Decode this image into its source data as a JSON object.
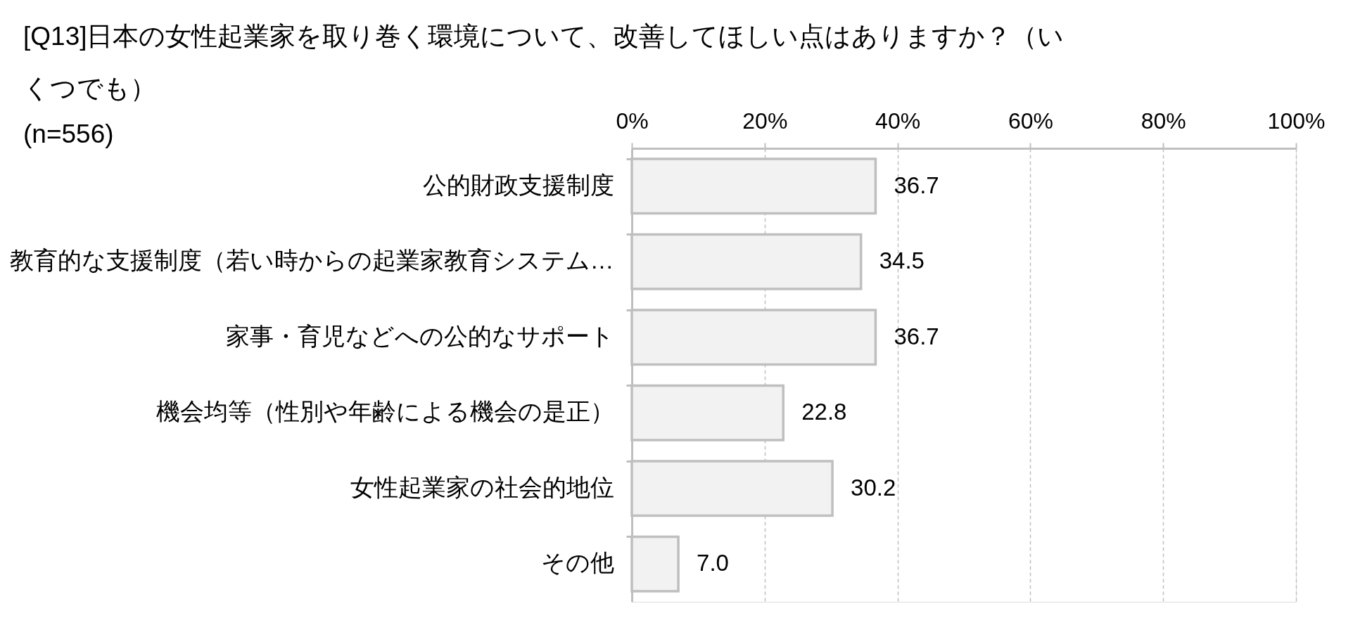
{
  "chart_data": {
    "type": "bar",
    "orientation": "horizontal",
    "title": "[Q13]日本の女性起業家を取り巻く環境について、改善してほしい点はありますか？（いくつでも）",
    "subtitle": "(n=556)",
    "categories": [
      "公的財政支援制度",
      "教育的な支援制度（若い時からの起業家教育システム…",
      "家事・育児などへの公的なサポート",
      "機会均等（性別や年齢による機会の是正）",
      "女性起業家の社会的地位",
      "その他"
    ],
    "values": [
      36.7,
      34.5,
      36.7,
      22.8,
      30.2,
      7.0
    ],
    "value_labels": [
      "36.7",
      "34.5",
      "36.7",
      "22.8",
      "30.2",
      "7.0"
    ],
    "color": "#f2f2f2",
    "xlim": [
      0,
      100
    ],
    "xticks": [
      {
        "value": 0,
        "label": "0%"
      },
      {
        "value": 20,
        "label": "20%"
      },
      {
        "value": 40,
        "label": "40%"
      },
      {
        "value": 60,
        "label": "60%"
      },
      {
        "value": 80,
        "label": "80%"
      },
      {
        "value": 100,
        "label": "100%"
      }
    ],
    "grid": "x"
  }
}
